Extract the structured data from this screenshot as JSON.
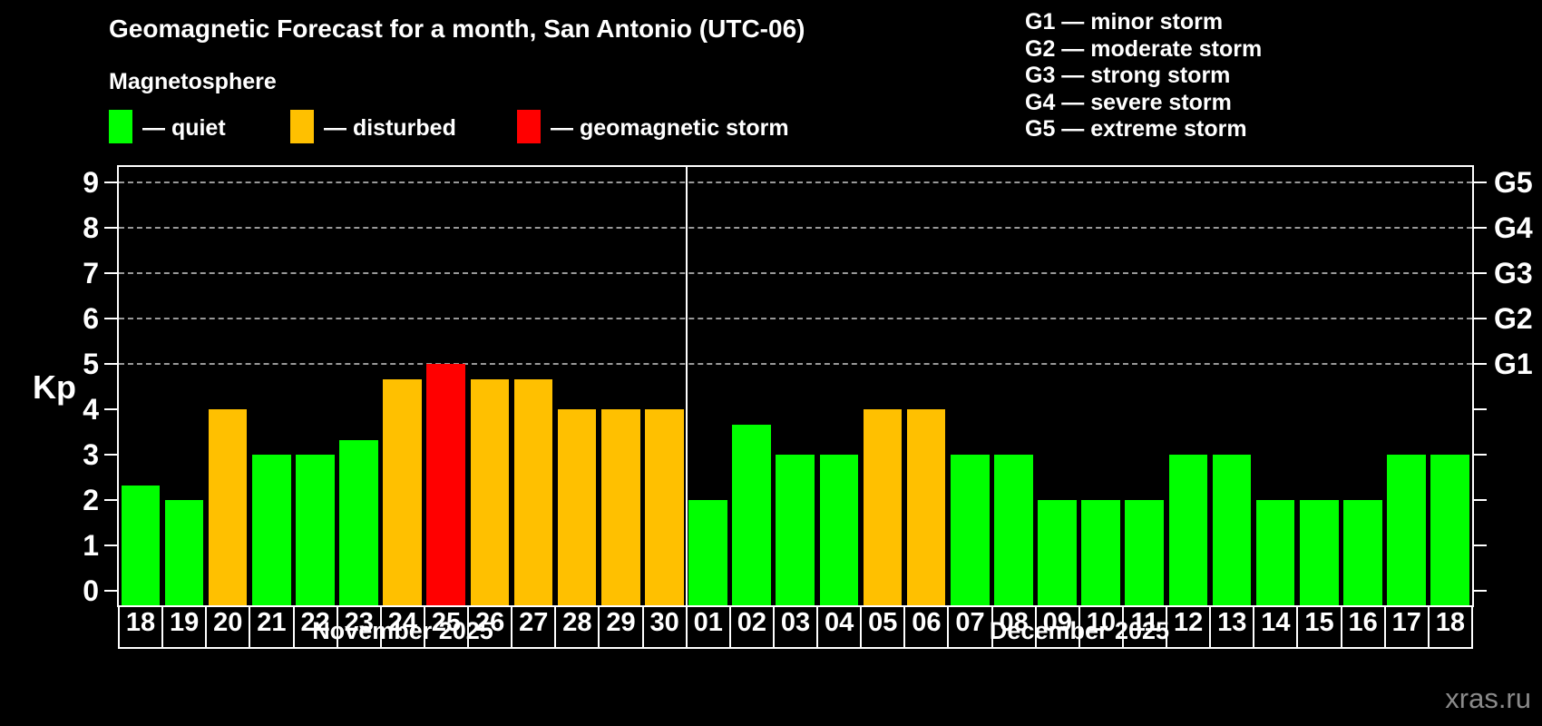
{
  "title": "Geomagnetic Forecast for a month, San Antonio (UTC-06)",
  "subtitle": "Magnetosphere",
  "legend": {
    "items": [
      {
        "key": "quiet",
        "label": "— quiet",
        "color": "#00ff00"
      },
      {
        "key": "disturbed",
        "label": "— disturbed",
        "color": "#ffc000"
      },
      {
        "key": "storm",
        "label": "— geomagnetic storm",
        "color": "#ff0000"
      }
    ]
  },
  "g_scale_legend": [
    "G1 — minor storm",
    "G2 — moderate storm",
    "G3 — strong storm",
    "G4 — severe storm",
    "G5 — extreme storm"
  ],
  "watermark": "xras.ru",
  "colors": {
    "background": "#000000",
    "text": "#ffffff",
    "grid": "#999999",
    "quiet": "#00ff00",
    "disturbed": "#ffc000",
    "storm": "#ff0000",
    "watermark": "#8a8a8a"
  },
  "chart_data": {
    "type": "bar",
    "title": "Geomagnetic Forecast for a month, San Antonio (UTC-06)",
    "ylabel": "Kp",
    "ylim": [
      -0.33,
      9.35
    ],
    "y_ticks": [
      0,
      1,
      2,
      3,
      4,
      5,
      6,
      7,
      8,
      9
    ],
    "gridlines_at_kp": [
      5,
      6,
      7,
      8,
      9
    ],
    "grid": "dashed, only at G-storm levels 5-9",
    "legend_position": "top-left",
    "right_axis": [
      {
        "kp": 5,
        "label": "G1"
      },
      {
        "kp": 6,
        "label": "G2"
      },
      {
        "kp": 7,
        "label": "G3"
      },
      {
        "kp": 8,
        "label": "G4"
      },
      {
        "kp": 9,
        "label": "G5"
      }
    ],
    "months": [
      {
        "label": "November 2025",
        "days": [
          {
            "day": "18",
            "kp": 2.33,
            "status": "quiet"
          },
          {
            "day": "19",
            "kp": 2,
            "status": "quiet"
          },
          {
            "day": "20",
            "kp": 4,
            "status": "disturbed"
          },
          {
            "day": "21",
            "kp": 3,
            "status": "quiet"
          },
          {
            "day": "22",
            "kp": 3,
            "status": "quiet"
          },
          {
            "day": "23",
            "kp": 3.33,
            "status": "quiet"
          },
          {
            "day": "24",
            "kp": 4.67,
            "status": "disturbed"
          },
          {
            "day": "25",
            "kp": 5,
            "status": "storm"
          },
          {
            "day": "26",
            "kp": 4.67,
            "status": "disturbed"
          },
          {
            "day": "27",
            "kp": 4.67,
            "status": "disturbed"
          },
          {
            "day": "28",
            "kp": 4,
            "status": "disturbed"
          },
          {
            "day": "29",
            "kp": 4,
            "status": "disturbed"
          },
          {
            "day": "30",
            "kp": 4,
            "status": "disturbed"
          }
        ]
      },
      {
        "label": "December 2025",
        "days": [
          {
            "day": "01",
            "kp": 2,
            "status": "quiet"
          },
          {
            "day": "02",
            "kp": 3.67,
            "status": "quiet"
          },
          {
            "day": "03",
            "kp": 3,
            "status": "quiet"
          },
          {
            "day": "04",
            "kp": 3,
            "status": "quiet"
          },
          {
            "day": "05",
            "kp": 4,
            "status": "disturbed"
          },
          {
            "day": "06",
            "kp": 4,
            "status": "disturbed"
          },
          {
            "day": "07",
            "kp": 3,
            "status": "quiet"
          },
          {
            "day": "08",
            "kp": 3,
            "status": "quiet"
          },
          {
            "day": "09",
            "kp": 2,
            "status": "quiet"
          },
          {
            "day": "10",
            "kp": 2,
            "status": "quiet"
          },
          {
            "day": "11",
            "kp": 2,
            "status": "quiet"
          },
          {
            "day": "12",
            "kp": 3,
            "status": "quiet"
          },
          {
            "day": "13",
            "kp": 3,
            "status": "quiet"
          },
          {
            "day": "14",
            "kp": 2,
            "status": "quiet"
          },
          {
            "day": "15",
            "kp": 2,
            "status": "quiet"
          },
          {
            "day": "16",
            "kp": 2,
            "status": "quiet"
          },
          {
            "day": "17",
            "kp": 3,
            "status": "quiet"
          },
          {
            "day": "18",
            "kp": 3,
            "status": "quiet"
          }
        ]
      }
    ]
  }
}
